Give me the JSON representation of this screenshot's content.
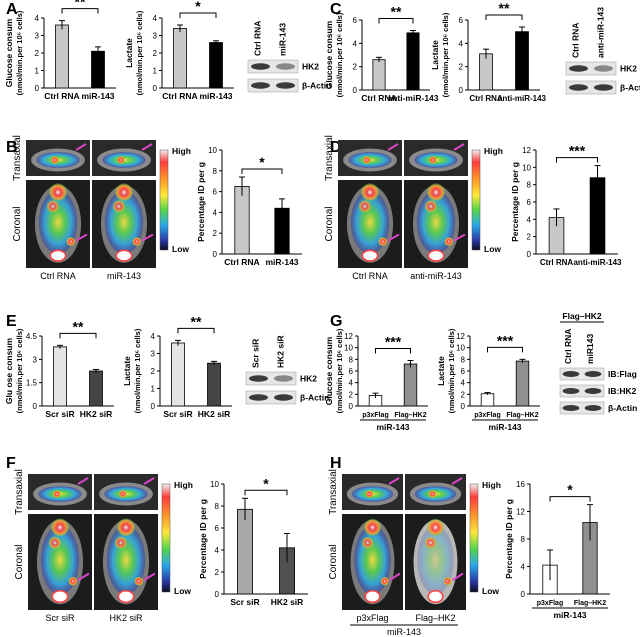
{
  "panels": {
    "A": {
      "letter": "A",
      "chart1": {
        "ylabel": "Glucose consum",
        "ylabel2": "(nmol/min.per 10⁶ cells)",
        "categories": [
          "Ctrl RNA",
          "miR-143"
        ],
        "values": [
          3.6,
          2.1
        ],
        "errors": [
          0.25,
          0.25
        ],
        "colors": [
          "#c8c8c8",
          "#000000"
        ],
        "ticks": [
          "0",
          "1",
          "2",
          "3",
          "4"
        ],
        "ymax": 4,
        "sig": "**"
      },
      "chart2": {
        "ylabel": "Lactate",
        "ylabel2": "(nmol/min.per 10⁶ cells)",
        "categories": [
          "Ctrl RNA",
          "miR-143"
        ],
        "values": [
          3.4,
          2.6
        ],
        "errors": [
          0.2,
          0.1
        ],
        "colors": [
          "#c8c8c8",
          "#000000"
        ],
        "ticks": [
          "0",
          "1",
          "2",
          "3",
          "4"
        ],
        "ymax": 4,
        "sig": "*"
      },
      "blot": {
        "lanes": [
          "Ctrl RNA",
          "miR-143"
        ],
        "bands": [
          "HK2",
          "β-Actin"
        ]
      }
    },
    "B": {
      "letter": "B",
      "scan_rows": [
        "Transaxial",
        "Coronal"
      ],
      "scan_cols": [
        "Ctrl RNA",
        "miR-143"
      ],
      "scale": {
        "high": "High",
        "low": "Low"
      },
      "chart": {
        "ylabel": "Percentage  ID  per g",
        "categories": [
          "Ctrl RNA",
          "miR-143"
        ],
        "values": [
          6.5,
          4.4
        ],
        "errors": [
          0.9,
          0.9
        ],
        "colors": [
          "#c8c8c8",
          "#000000"
        ],
        "ticks": [
          "0",
          "2",
          "4",
          "6",
          "8",
          "10"
        ],
        "ymax": 10,
        "sig": "*"
      }
    },
    "C": {
      "letter": "C",
      "chart1": {
        "ylabel": "Glucose consum",
        "ylabel2": "(nmol/min.per 10⁶ cells)",
        "categories": [
          "Ctrl RNA",
          "anti-miR-143"
        ],
        "values": [
          2.6,
          4.9
        ],
        "errors": [
          0.2,
          0.2
        ],
        "colors": [
          "#c8c8c8",
          "#000000"
        ],
        "ticks": [
          "0",
          "2",
          "4",
          "6"
        ],
        "ymax": 6,
        "sig": "**"
      },
      "chart2": {
        "ylabel": "Lactate",
        "ylabel2": "(nmol/min.per 10⁶ cells)",
        "categories": [
          "Ctrl RNA",
          "anti-miR-143"
        ],
        "values": [
          3.1,
          5.0
        ],
        "errors": [
          0.4,
          0.4
        ],
        "colors": [
          "#c8c8c8",
          "#000000"
        ],
        "ticks": [
          "0",
          "2",
          "4",
          "6"
        ],
        "ymax": 6,
        "sig": "**"
      },
      "blot": {
        "lanes": [
          "Ctrl RNA",
          "anti-miR-143"
        ],
        "bands": [
          "HK2",
          "β-Actin"
        ]
      }
    },
    "D": {
      "letter": "D",
      "scan_rows": [
        "Transaxial",
        "Coronal"
      ],
      "scan_cols": [
        "Ctrl RNA",
        "anti-miR-143"
      ],
      "scale": {
        "high": "High",
        "low": "Low"
      },
      "chart": {
        "ylabel": "Percentage  ID  per g",
        "categories": [
          "Ctrl RNA",
          "anti-miR-143"
        ],
        "values": [
          4.2,
          8.8
        ],
        "errors": [
          1.0,
          1.4
        ],
        "colors": [
          "#c8c8c8",
          "#000000"
        ],
        "ticks": [
          "0",
          "2",
          "4",
          "6",
          "8",
          "10",
          "12"
        ],
        "ymax": 12,
        "sig": "***"
      }
    },
    "E": {
      "letter": "E",
      "chart1": {
        "ylabel": "Glu  ose consum",
        "ylabel2": "(nmol/min.per 10⁶ cells)",
        "categories": [
          "Scr siR",
          "HK2 siR"
        ],
        "values": [
          3.8,
          2.25
        ],
        "errors": [
          0.1,
          0.1
        ],
        "colors": [
          "#e4e4e4",
          "#444444"
        ],
        "ticks": [
          "0",
          "1.5",
          "3",
          "4.5"
        ],
        "ymax": 4.5,
        "sig": "**"
      },
      "chart2": {
        "ylabel": "Lactate",
        "ylabel2": "(nmol/min.per 10⁶ cells)",
        "categories": [
          "Scr siR",
          "HK2 siR"
        ],
        "values": [
          3.6,
          2.45
        ],
        "errors": [
          0.15,
          0.1
        ],
        "colors": [
          "#e4e4e4",
          "#444444"
        ],
        "ticks": [
          "0",
          "1",
          "2",
          "3",
          "4"
        ],
        "ymax": 4,
        "sig": "**"
      },
      "blot": {
        "lanes": [
          "Scr siR",
          "HK2 siR"
        ],
        "bands": [
          "HK2",
          "β-Actin"
        ]
      }
    },
    "F": {
      "letter": "F",
      "scan_rows": [
        "Transaxial",
        "Coronal"
      ],
      "scan_cols": [
        "Scr siR",
        "HK2 siR"
      ],
      "scale": {
        "high": "High",
        "low": "Low"
      },
      "chart": {
        "ylabel": "Percentage  ID  per g",
        "categories": [
          "Scr siR",
          "HK2 siR"
        ],
        "values": [
          7.7,
          4.2
        ],
        "errors": [
          1.0,
          1.3
        ],
        "colors": [
          "#a8a8a8",
          "#505050"
        ],
        "ticks": [
          "0",
          "2",
          "4",
          "6",
          "8",
          "10"
        ],
        "ymax": 10,
        "sig": "*"
      }
    },
    "G": {
      "letter": "G",
      "chart1": {
        "ylabel": "Glucose consum",
        "ylabel2": "(nmol/min.per 10⁶ cells)",
        "categories": [
          "p3xFlag",
          "Flag–HK2"
        ],
        "values": [
          1.8,
          7.2
        ],
        "errors": [
          0.4,
          0.6
        ],
        "colors": [
          "#ffffff",
          "#909090"
        ],
        "ticks": [
          "0",
          "2",
          "4",
          "6",
          "8",
          "10",
          "12"
        ],
        "ymax": 12,
        "sig": "***",
        "group": "miR-143"
      },
      "chart2": {
        "ylabel": "Lactate",
        "ylabel2": "(nmol/min.per 10⁶ cells)",
        "categories": [
          "p3xFlag",
          "Flag–HK2"
        ],
        "values": [
          2.1,
          7.7
        ],
        "errors": [
          0.2,
          0.3
        ],
        "colors": [
          "#ffffff",
          "#909090"
        ],
        "ticks": [
          "0",
          "2",
          "4",
          "6",
          "8",
          "10",
          "12"
        ],
        "ymax": 12,
        "sig": "***",
        "group": "miR-143"
      },
      "blot": {
        "header": "Flag–HK2",
        "lanes": [
          "Ctrl RNA",
          "miR143"
        ],
        "bands": [
          "IB:Flag",
          "IB:HK2",
          "β-Actin"
        ]
      }
    },
    "H": {
      "letter": "H",
      "scan_rows": [
        "Transaxial",
        "Coronal"
      ],
      "scan_cols": [
        "p3xFlag",
        "Flag–HK2"
      ],
      "group": "miR-143",
      "scale": {
        "high": "High",
        "low": "Low"
      },
      "chart": {
        "ylabel": "Percentage  ID  per g",
        "categories": [
          "p3xFlag",
          "Flag–HK2"
        ],
        "values": [
          4.2,
          10.4
        ],
        "errors": [
          2.2,
          2.6
        ],
        "colors": [
          "#ffffff",
          "#909090"
        ],
        "ticks": [
          "0",
          "4",
          "8",
          "12",
          "16"
        ],
        "ymax": 16,
        "sig": "*",
        "group": "miR-143"
      }
    }
  },
  "chart_data": [
    {
      "type": "bar",
      "panel": "A",
      "ylabel": "Glucose consum (nmol/min.per 10⁶ cells)",
      "categories": [
        "Ctrl RNA",
        "miR-143"
      ],
      "values": [
        3.6,
        2.1
      ],
      "ylim": [
        0,
        4
      ]
    },
    {
      "type": "bar",
      "panel": "A",
      "ylabel": "Lactate (nmol/min.per 10⁶ cells)",
      "categories": [
        "Ctrl RNA",
        "miR-143"
      ],
      "values": [
        3.4,
        2.6
      ],
      "ylim": [
        0,
        4
      ]
    },
    {
      "type": "bar",
      "panel": "B",
      "ylabel": "Percentage ID per g",
      "categories": [
        "Ctrl RNA",
        "miR-143"
      ],
      "values": [
        6.5,
        4.4
      ],
      "ylim": [
        0,
        10
      ]
    },
    {
      "type": "bar",
      "panel": "C",
      "ylabel": "Glucose consum (nmol/min.per 10⁶ cells)",
      "categories": [
        "Ctrl RNA",
        "anti-miR-143"
      ],
      "values": [
        2.6,
        4.9
      ],
      "ylim": [
        0,
        6
      ]
    },
    {
      "type": "bar",
      "panel": "C",
      "ylabel": "Lactate (nmol/min.per 10⁶ cells)",
      "categories": [
        "Ctrl RNA",
        "anti-miR-143"
      ],
      "values": [
        3.1,
        5.0
      ],
      "ylim": [
        0,
        6
      ]
    },
    {
      "type": "bar",
      "panel": "D",
      "ylabel": "Percentage ID per g",
      "categories": [
        "Ctrl RNA",
        "anti-miR-143"
      ],
      "values": [
        4.2,
        8.8
      ],
      "ylim": [
        0,
        12
      ]
    },
    {
      "type": "bar",
      "panel": "E",
      "ylabel": "Glu ose consum (nmol/min.per 10⁶ cells)",
      "categories": [
        "Scr siR",
        "HK2 siR"
      ],
      "values": [
        3.8,
        2.25
      ],
      "ylim": [
        0,
        4.5
      ]
    },
    {
      "type": "bar",
      "panel": "E",
      "ylabel": "Lactate (nmol/min.per 10⁶ cells)",
      "categories": [
        "Scr siR",
        "HK2 siR"
      ],
      "values": [
        3.6,
        2.45
      ],
      "ylim": [
        0,
        4
      ]
    },
    {
      "type": "bar",
      "panel": "F",
      "ylabel": "Percentage ID per g",
      "categories": [
        "Scr siR",
        "HK2 siR"
      ],
      "values": [
        7.7,
        4.2
      ],
      "ylim": [
        0,
        10
      ]
    },
    {
      "type": "bar",
      "panel": "G",
      "ylabel": "Glucose consum (nmol/min.per 10⁶ cells)",
      "categories": [
        "p3xFlag",
        "Flag–HK2"
      ],
      "values": [
        1.8,
        7.2
      ],
      "ylim": [
        0,
        12
      ]
    },
    {
      "type": "bar",
      "panel": "G",
      "ylabel": "Lactate (nmol/min.per 10⁶ cells)",
      "categories": [
        "p3xFlag",
        "Flag–HK2"
      ],
      "values": [
        2.1,
        7.7
      ],
      "ylim": [
        0,
        12
      ]
    },
    {
      "type": "bar",
      "panel": "H",
      "ylabel": "Percentage ID per g",
      "categories": [
        "p3xFlag",
        "Flag–HK2"
      ],
      "values": [
        4.2,
        10.4
      ],
      "ylim": [
        0,
        16
      ]
    }
  ]
}
